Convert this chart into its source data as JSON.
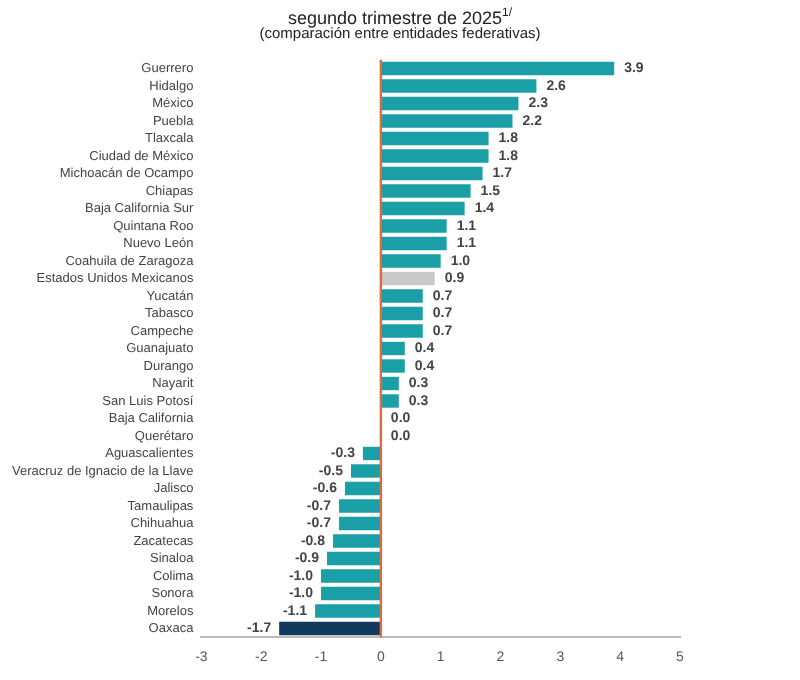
{
  "chart_data": {
    "type": "bar",
    "orientation": "horizontal",
    "title": "segundo trimestre de 2025$^{1/}$",
    "subtitle": "(comparación entre entidades federativas)",
    "categories": [
      "Guerrero",
      "Hidalgo",
      "México",
      "Puebla",
      "Tlaxcala",
      "Ciudad de México",
      "Michoacán de Ocampo",
      "Chiapas",
      "Baja California Sur",
      "Quintana Roo",
      "Nuevo León",
      "Coahuila de Zaragoza",
      "Estados Unidos Mexicanos",
      "Yucatán",
      "Tabasco",
      "Campeche",
      "Guanajuato",
      "Durango",
      "Nayarit",
      "San Luis Potosí",
      "Baja California",
      "Querétaro",
      "Aguascalientes",
      "Veracruz de Ignacio de la Llave",
      "Jalisco",
      "Tamaulipas",
      "Chihuahua",
      "Zacatecas",
      "Sinaloa",
      "Colima",
      "Sonora",
      "Morelos",
      "Oaxaca"
    ],
    "values": [
      3.9,
      2.6,
      2.3,
      2.2,
      1.8,
      1.8,
      1.7,
      1.5,
      1.4,
      1.1,
      1.1,
      1.0,
      0.9,
      0.7,
      0.7,
      0.7,
      0.4,
      0.4,
      0.3,
      0.3,
      0.0,
      0.0,
      -0.3,
      -0.5,
      -0.6,
      -0.7,
      -0.7,
      -0.8,
      -0.9,
      -1.0,
      -1.0,
      -1.1,
      -1.7
    ],
    "colors": [
      "#1b9fa6",
      "#1b9fa6",
      "#1b9fa6",
      "#1b9fa6",
      "#1b9fa6",
      "#1b9fa6",
      "#1b9fa6",
      "#1b9fa6",
      "#1b9fa6",
      "#1b9fa6",
      "#1b9fa6",
      "#1b9fa6",
      "#c9c9c9",
      "#1b9fa6",
      "#1b9fa6",
      "#1b9fa6",
      "#1b9fa6",
      "#1b9fa6",
      "#1b9fa6",
      "#1b9fa6",
      "#1b9fa6",
      "#1b9fa6",
      "#1b9fa6",
      "#1b9fa6",
      "#1b9fa6",
      "#1b9fa6",
      "#1b9fa6",
      "#1b9fa6",
      "#1b9fa6",
      "#1b9fa6",
      "#1b9fa6",
      "#1b9fa6",
      "#13395c"
    ],
    "xlim": [
      -3,
      5
    ],
    "xticks": [
      -3,
      -2,
      -1,
      0,
      1,
      2,
      3,
      4,
      5
    ],
    "ref_lines": [
      {
        "axis": "x",
        "value": 0,
        "color": "#e06a3c"
      }
    ],
    "value_labels": [
      "3.9",
      "2.6",
      "2.3",
      "2.2",
      "1.8",
      "1.8",
      "1.7",
      "1.5",
      "1.4",
      "1.1",
      "1.1",
      "1.0",
      "0.9",
      "0.7",
      "0.7",
      "0.7",
      "0.4",
      "0.4",
      "0.3",
      "0.3",
      "0.0",
      "0.0",
      "-0.3",
      "-0.5",
      "-0.6",
      "-0.7",
      "-0.7",
      "-0.8",
      "-0.9",
      "-1.0",
      "-1.0",
      "-1.1",
      "-1.7"
    ],
    "grid": false,
    "legend": false
  }
}
